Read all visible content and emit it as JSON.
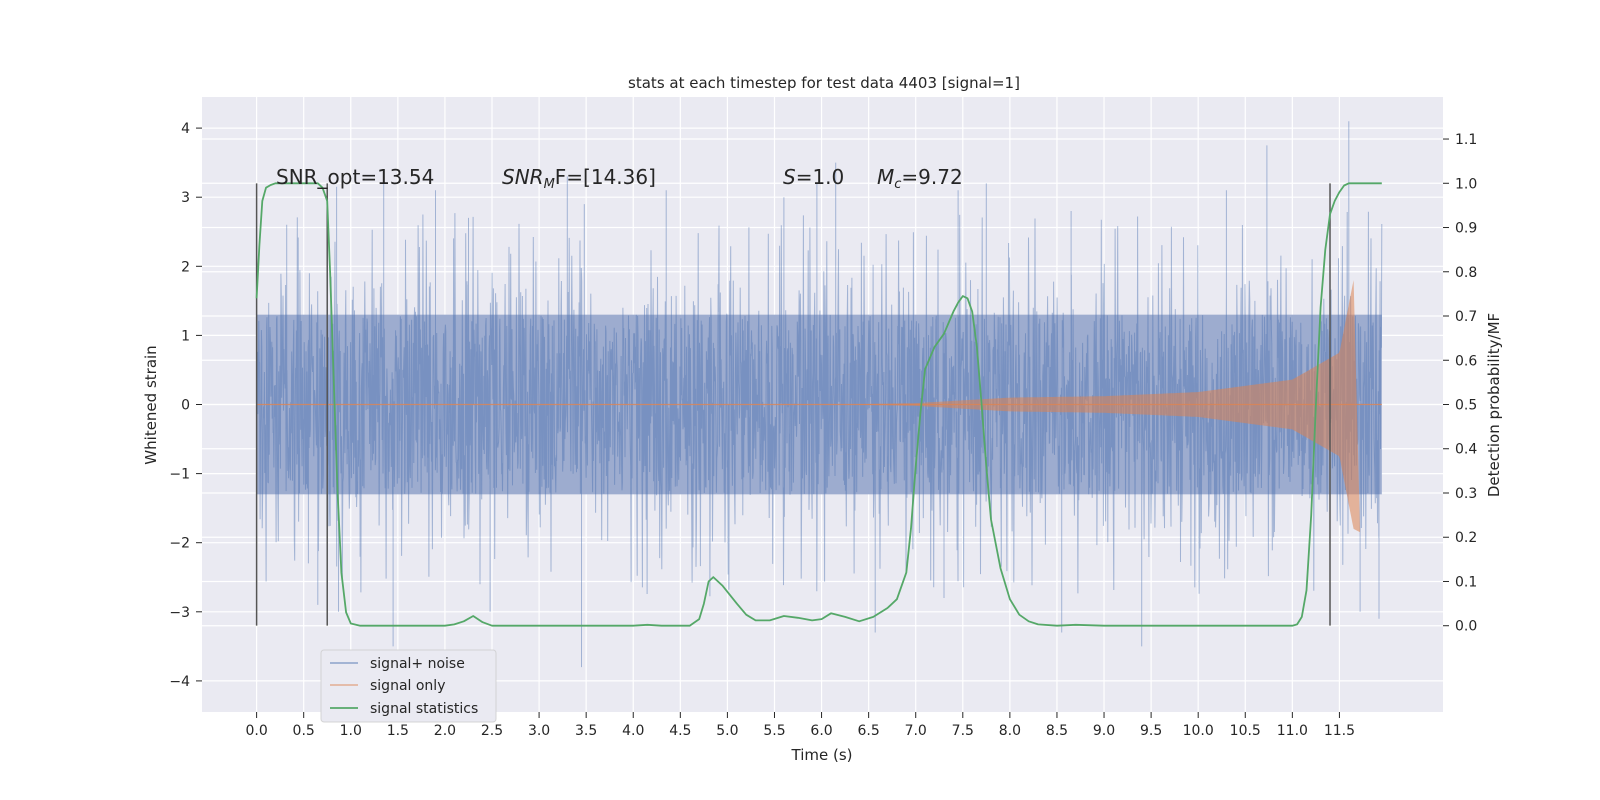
{
  "chart_data": {
    "type": "line",
    "title": "stats at each timestep for test data 4403 [signal=1]",
    "xlabel": "Time (s)",
    "ylabel": "Whitened strain",
    "y2label": "Detection probability/MF",
    "xlim": [
      -0.58,
      12.6
    ],
    "ylim": [
      -4.45,
      4.45
    ],
    "y2lim": [
      -0.195,
      1.195
    ],
    "x_ticks": [
      0.0,
      0.5,
      1.0,
      1.5,
      2.0,
      2.5,
      3.0,
      3.5,
      4.0,
      4.5,
      5.0,
      5.5,
      6.0,
      6.5,
      7.0,
      7.5,
      8.0,
      8.5,
      9.0,
      9.5,
      10.0,
      10.5,
      11.0,
      11.5
    ],
    "x_tick_labels": [
      "0.0",
      "0.5",
      "1.0",
      "1.5",
      "2.0",
      "2.5",
      "3.0",
      "3.5",
      "4.0",
      "4.5",
      "5.0",
      "5.5",
      "6.0",
      "6.5",
      "7.0",
      "7.5",
      "8.0",
      "8.5",
      "9.0",
      "9.5",
      "10.0",
      "10.5",
      "11.0",
      "11.5"
    ],
    "y_ticks": [
      -4,
      -3,
      -2,
      -1,
      0,
      1,
      2,
      3,
      4
    ],
    "y_tick_labels": [
      "−4",
      "−3",
      "−2",
      "−1",
      "0",
      "1",
      "2",
      "3",
      "4"
    ],
    "y2_ticks": [
      0.0,
      0.1,
      0.2,
      0.3,
      0.4,
      0.5,
      0.6,
      0.7,
      0.8,
      0.9,
      1.0,
      1.1
    ],
    "y2_tick_labels": [
      "0.0",
      "0.1",
      "0.2",
      "0.3",
      "0.4",
      "0.5",
      "0.6",
      "0.7",
      "0.8",
      "0.9",
      "1.0",
      "1.1"
    ],
    "grid": true,
    "legend_position": "lower-left",
    "noise": {
      "t_start": 0.0,
      "t_end": 11.95,
      "core_band": [
        -1.3,
        1.3
      ],
      "typical_extreme": 2.4,
      "spikes": [
        {
          "t": 0.0,
          "y": 2.3
        },
        {
          "t": 0.32,
          "y": 2.6
        },
        {
          "t": 0.55,
          "y": -2.3
        },
        {
          "t": 0.65,
          "y": -2.9
        },
        {
          "t": 0.85,
          "y": 3.15
        },
        {
          "t": 0.87,
          "y": -3.0
        },
        {
          "t": 1.35,
          "y": 3.2
        },
        {
          "t": 1.45,
          "y": -3.5
        },
        {
          "t": 1.9,
          "y": 3.1
        },
        {
          "t": 2.25,
          "y": 2.7
        },
        {
          "t": 2.48,
          "y": -3.0
        },
        {
          "t": 3.3,
          "y": 3.3
        },
        {
          "t": 3.45,
          "y": -3.8
        },
        {
          "t": 3.48,
          "y": 2.9
        },
        {
          "t": 4.35,
          "y": 3.1
        },
        {
          "t": 5.6,
          "y": 3.0
        },
        {
          "t": 5.95,
          "y": 3.2
        },
        {
          "t": 6.15,
          "y": 3.5
        },
        {
          "t": 6.57,
          "y": -3.3
        },
        {
          "t": 7.3,
          "y": -2.8
        },
        {
          "t": 7.45,
          "y": 3.1
        },
        {
          "t": 7.75,
          "y": 3.2
        },
        {
          "t": 8.55,
          "y": -3.3
        },
        {
          "t": 8.65,
          "y": 2.8
        },
        {
          "t": 9.4,
          "y": -3.5
        },
        {
          "t": 10.3,
          "y": 3.1
        },
        {
          "t": 10.73,
          "y": 3.75
        },
        {
          "t": 11.6,
          "y": 4.1
        },
        {
          "t": 11.72,
          "y": -3.0
        },
        {
          "t": 11.92,
          "y": -3.1
        }
      ]
    },
    "signal_only": {
      "t_start": 6.4,
      "t_end": 11.72,
      "amp_at_start": 0.005,
      "amp_at_7": 0.02,
      "amp_at_8": 0.1,
      "amp_at_9": 0.12,
      "amp_at_10": 0.18,
      "amp_at_11": 0.36,
      "amp_at_11_5": 0.75,
      "peak_t": 11.65,
      "peak_pos": 1.8,
      "peak_neg": -1.85
    },
    "markers": {
      "series": "signal only",
      "vlines": [
        0.0,
        0.75,
        11.4
      ],
      "vline_range": [
        -3.2,
        3.2
      ]
    },
    "series": [
      {
        "name": "signal+ noise",
        "color": "#4c72b0"
      },
      {
        "name": "signal only",
        "color": "#dd8452"
      },
      {
        "name": "signal statistics",
        "color": "#55a868",
        "x": [
          0.0,
          0.03,
          0.06,
          0.1,
          0.15,
          0.2,
          0.3,
          0.4,
          0.5,
          0.6,
          0.65,
          0.7,
          0.75,
          0.78,
          0.82,
          0.86,
          0.9,
          0.95,
          1.0,
          1.1,
          1.2,
          2.0,
          2.1,
          2.2,
          2.3,
          2.4,
          2.5,
          2.6,
          3.5,
          4.0,
          4.15,
          4.3,
          4.6,
          4.7,
          4.75,
          4.8,
          4.85,
          4.95,
          5.1,
          5.2,
          5.3,
          5.45,
          5.6,
          5.75,
          5.9,
          6.0,
          6.1,
          6.25,
          6.4,
          6.55,
          6.7,
          6.8,
          6.9,
          6.95,
          7.0,
          7.05,
          7.1,
          7.2,
          7.3,
          7.4,
          7.45,
          7.5,
          7.55,
          7.6,
          7.65,
          7.7,
          7.75,
          7.8,
          7.9,
          8.0,
          8.1,
          8.2,
          8.3,
          8.5,
          8.7,
          9.0,
          10.0,
          10.5,
          11.0,
          11.05,
          11.1,
          11.15,
          11.2,
          11.25,
          11.3,
          11.35,
          11.4,
          11.45,
          11.5,
          11.55,
          11.6,
          11.7,
          11.8,
          11.9,
          11.95
        ],
        "values": [
          0.74,
          0.86,
          0.96,
          0.99,
          0.996,
          1.0,
          1.0,
          1.0,
          1.0,
          1.0,
          1.0,
          0.99,
          0.96,
          0.8,
          0.55,
          0.3,
          0.12,
          0.03,
          0.005,
          0.0,
          0.0,
          0.0,
          0.003,
          0.01,
          0.022,
          0.008,
          0.0,
          0.0,
          0.0,
          0.0,
          0.002,
          0.0,
          0.0,
          0.015,
          0.05,
          0.1,
          0.11,
          0.09,
          0.05,
          0.025,
          0.012,
          0.012,
          0.022,
          0.018,
          0.012,
          0.015,
          0.028,
          0.02,
          0.01,
          0.02,
          0.04,
          0.06,
          0.12,
          0.22,
          0.36,
          0.48,
          0.58,
          0.63,
          0.66,
          0.71,
          0.73,
          0.745,
          0.74,
          0.71,
          0.63,
          0.5,
          0.36,
          0.24,
          0.13,
          0.06,
          0.025,
          0.01,
          0.003,
          0.0,
          0.002,
          0.0,
          0.0,
          0.0,
          0.0,
          0.003,
          0.02,
          0.08,
          0.25,
          0.5,
          0.72,
          0.85,
          0.93,
          0.96,
          0.98,
          0.995,
          1.0,
          1.0,
          1.0,
          1.0,
          1.0
        ]
      }
    ],
    "annotations": [
      {
        "t": 0.2,
        "y": 3.2,
        "text": "SNR_opt=13.54"
      },
      {
        "t": 2.6,
        "y": 3.2,
        "text": "SNR_MF=[14.36]"
      },
      {
        "t": 5.6,
        "y": 3.2,
        "text": "S=1.0"
      },
      {
        "t": 6.6,
        "y": 3.2,
        "text": "M_c=9.72"
      }
    ]
  }
}
